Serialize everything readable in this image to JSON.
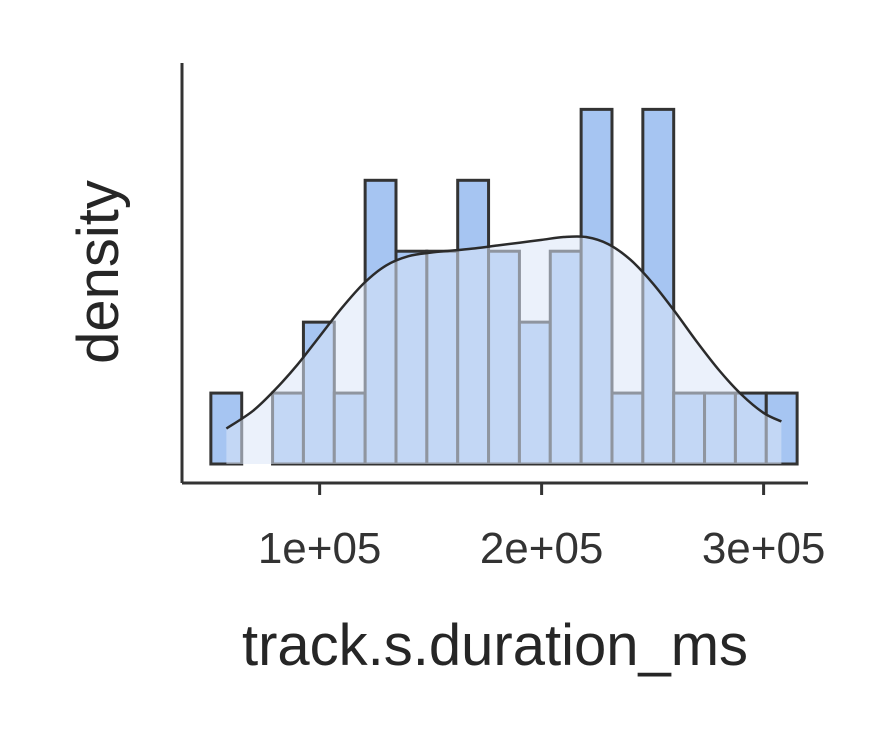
{
  "chart_data": {
    "type": "histogram",
    "xlabel": "track.s.duration_ms",
    "ylabel": "density",
    "xlim": [
      38000,
      320000
    ],
    "ylim": [
      0,
      5.4
    ],
    "x_ticks": [
      100000,
      200000,
      300000
    ],
    "x_tick_labels": [
      "1e+05",
      "2e+05",
      "3e+05"
    ],
    "show_y_ticks": false,
    "grid": false,
    "bins": {
      "start": 51000,
      "width": 13900,
      "counts": [
        1,
        0,
        1,
        2,
        1,
        4,
        3,
        3,
        4,
        3,
        2,
        3,
        5,
        1,
        5,
        1,
        1,
        1,
        1
      ]
    },
    "kde": {
      "x": [
        58000,
        70000,
        80000,
        90000,
        100000,
        110000,
        120000,
        130000,
        140000,
        150000,
        160000,
        170000,
        180000,
        190000,
        200000,
        210000,
        220000,
        230000,
        240000,
        250000,
        260000,
        270000,
        280000,
        290000,
        300000,
        308000
      ],
      "y": [
        0.5,
        0.75,
        1.05,
        1.4,
        1.8,
        2.2,
        2.55,
        2.8,
        2.93,
        2.98,
        3.01,
        3.04,
        3.08,
        3.12,
        3.16,
        3.2,
        3.2,
        3.1,
        2.88,
        2.55,
        2.15,
        1.72,
        1.32,
        0.98,
        0.72,
        0.6
      ]
    },
    "colors": {
      "bar_fill": "#a6c5f2",
      "bar_stroke": "#333333",
      "kde_fill": "#dbe6f7",
      "kde_line": "#2b2b2b",
      "axis": "#333333"
    }
  }
}
